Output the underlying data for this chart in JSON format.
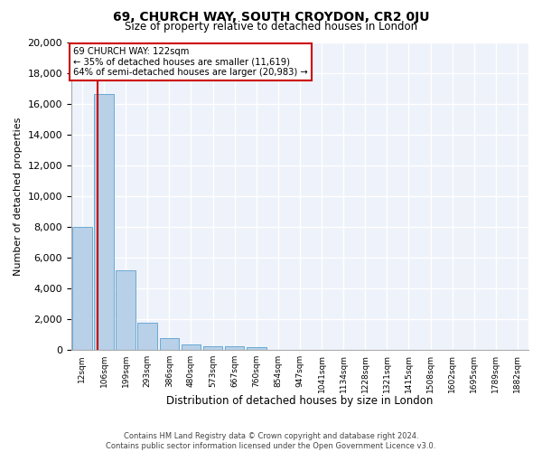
{
  "title": "69, CHURCH WAY, SOUTH CROYDON, CR2 0JU",
  "subtitle": "Size of property relative to detached houses in London",
  "xlabel": "Distribution of detached houses by size in London",
  "ylabel": "Number of detached properties",
  "bar_color": "#b8d0e8",
  "bar_edge_color": "#6aaad4",
  "background_color": "#eef2fa",
  "grid_color": "#ffffff",
  "annotation_box_color": "#cc0000",
  "property_line_color": "#cc0000",
  "annotation_line1": "69 CHURCH WAY: 122sqm",
  "annotation_line2": "← 35% of detached houses are smaller (11,619)",
  "annotation_line3": "64% of semi-detached houses are larger (20,983) →",
  "bin_labels": [
    "12sqm",
    "106sqm",
    "199sqm",
    "293sqm",
    "386sqm",
    "480sqm",
    "573sqm",
    "667sqm",
    "760sqm",
    "854sqm",
    "947sqm",
    "1041sqm",
    "1134sqm",
    "1228sqm",
    "1321sqm",
    "1415sqm",
    "1508sqm",
    "1602sqm",
    "1695sqm",
    "1789sqm",
    "1882sqm"
  ],
  "bar_heights": [
    8000,
    16600,
    5200,
    1750,
    750,
    350,
    270,
    220,
    185,
    0,
    0,
    0,
    0,
    0,
    0,
    0,
    0,
    0,
    0,
    0,
    0
  ],
  "property_bar_index": 1,
  "ylim": [
    0,
    20000
  ],
  "yticks": [
    0,
    2000,
    4000,
    6000,
    8000,
    10000,
    12000,
    14000,
    16000,
    18000,
    20000
  ],
  "footer_line1": "Contains HM Land Registry data © Crown copyright and database right 2024.",
  "footer_line2": "Contains public sector information licensed under the Open Government Licence v3.0."
}
